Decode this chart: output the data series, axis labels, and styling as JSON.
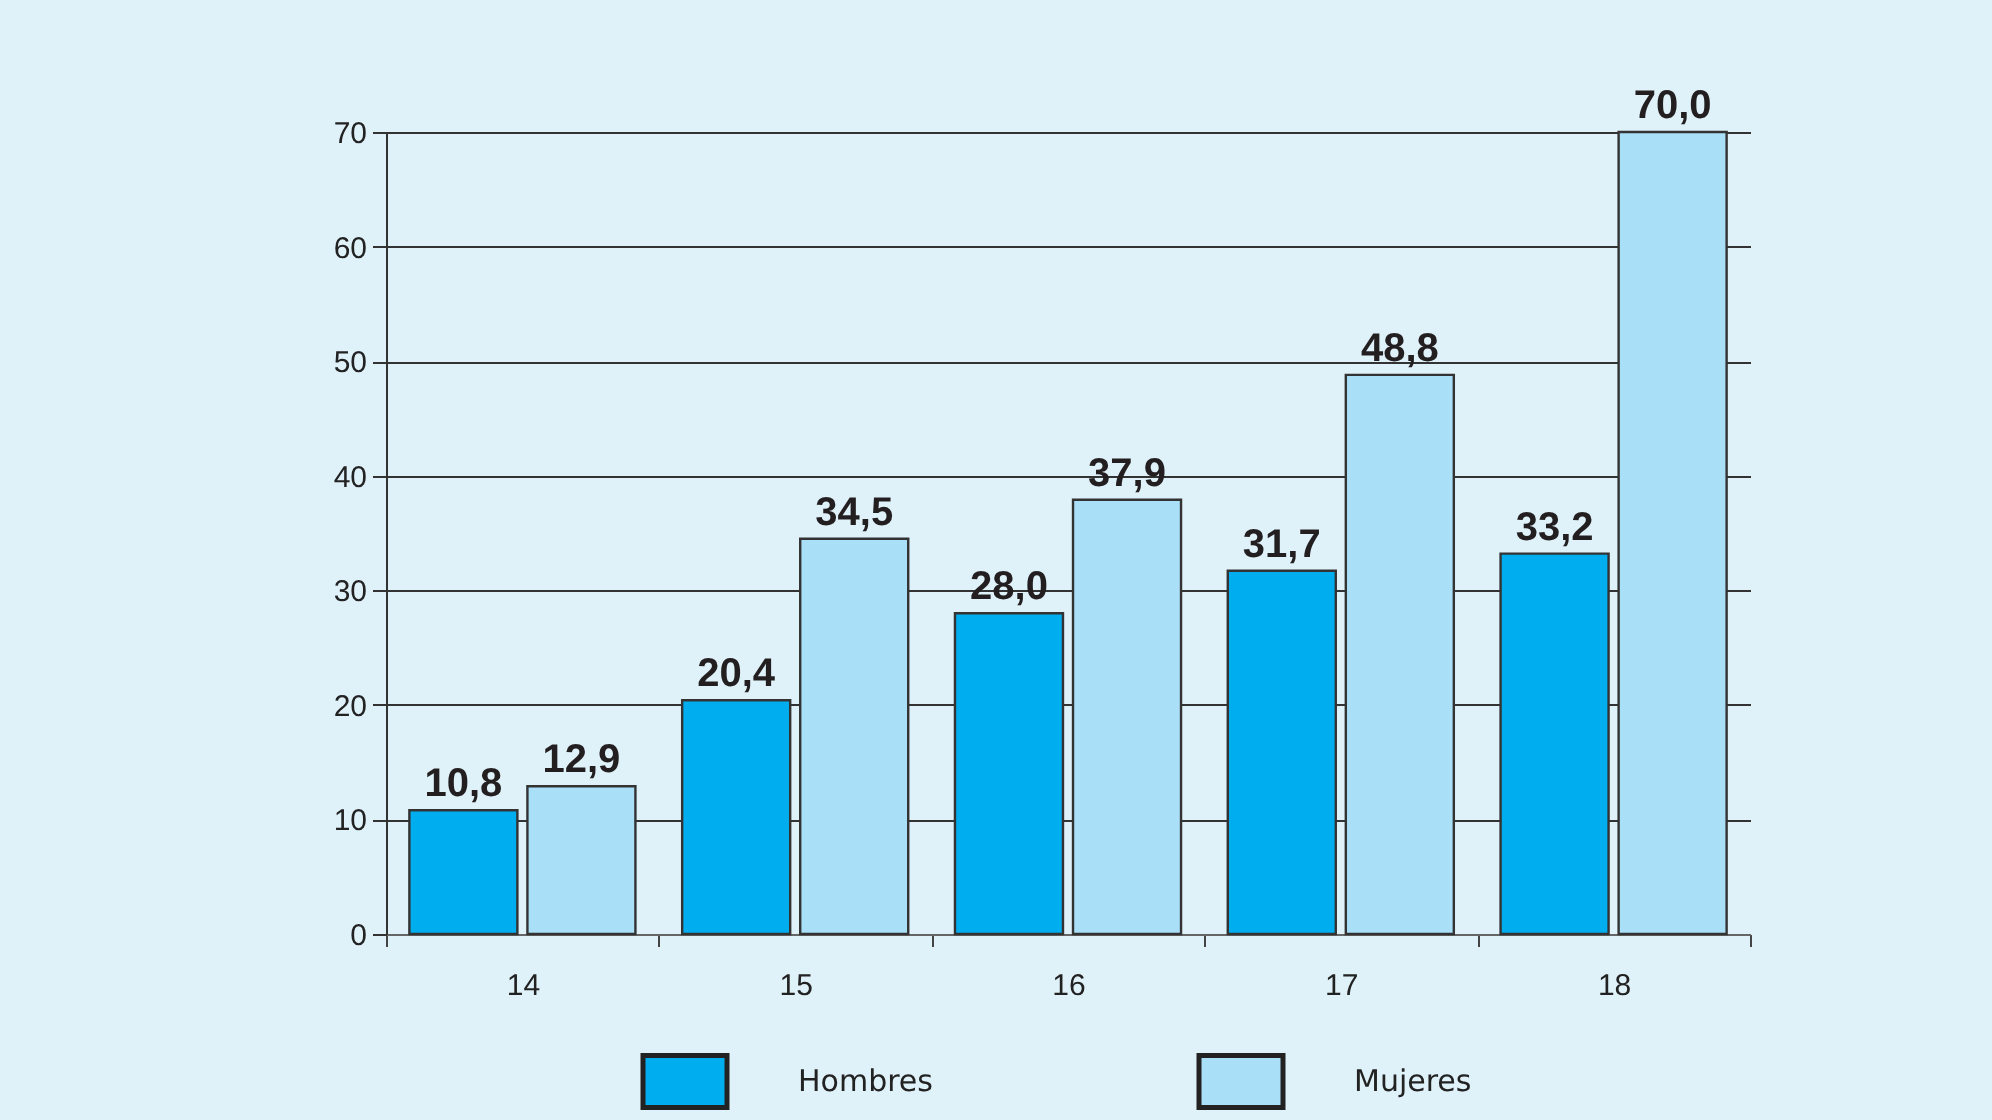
{
  "chart_data": {
    "type": "bar",
    "categories": [
      "14",
      "15",
      "16",
      "17",
      "18"
    ],
    "series": [
      {
        "name": "Hombres",
        "color": "#00aeef",
        "values": [
          10.8,
          20.4,
          28.0,
          31.7,
          33.2
        ],
        "value_labels": [
          "10,8",
          "20,4",
          "28,0",
          "31,7",
          "33,2"
        ]
      },
      {
        "name": "Mujeres",
        "color": "#aadff8",
        "values": [
          12.9,
          34.5,
          37.9,
          48.8,
          70.0
        ],
        "value_labels": [
          "12,9",
          "34,5",
          "37,9",
          "48,8",
          "70,0"
        ]
      }
    ],
    "ylim": [
      0,
      70
    ],
    "yticks": [
      0,
      10,
      20,
      30,
      40,
      50,
      60,
      70
    ],
    "grid": "y",
    "legend": "bottom"
  }
}
